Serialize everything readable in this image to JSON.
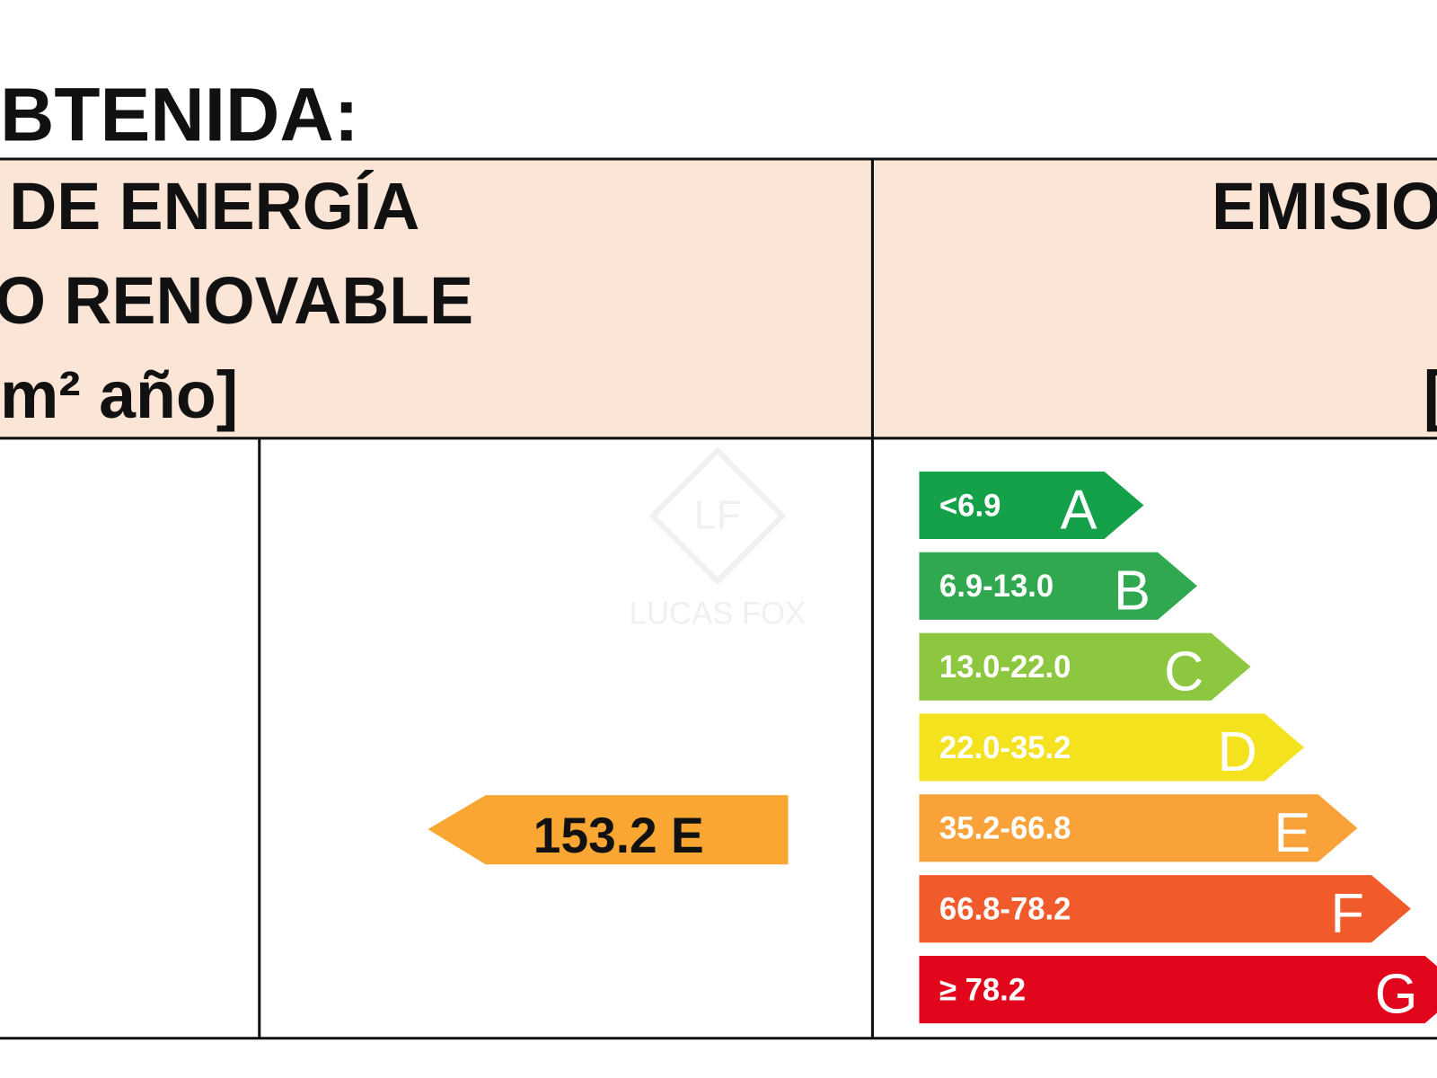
{
  "header": {
    "title": "BTENIDA:",
    "left_heading": [
      "DE ENERGÍA",
      "O RENOVABLE",
      "m² año]"
    ],
    "right_heading": [
      "EMISIO",
      "["
    ]
  },
  "indicator": {
    "label": "153.2 E",
    "color": "#f9a632"
  },
  "watermark": {
    "logo": "LF",
    "brand": "LUCAS FOX"
  },
  "scale": [
    {
      "range": "<6.9",
      "letter": "A",
      "color": "#15a04a"
    },
    {
      "range": "6.9-13.0",
      "letter": "B",
      "color": "#2fa84f"
    },
    {
      "range": "13.0-22.0",
      "letter": "C",
      "color": "#8dc63f"
    },
    {
      "range": "22.0-35.2",
      "letter": "D",
      "color": "#f4e21f"
    },
    {
      "range": "35.2-66.8",
      "letter": "E",
      "color": "#f9a23a"
    },
    {
      "range": "66.8-78.2",
      "letter": "F",
      "color": "#f15a2b"
    },
    {
      "range": "≥ 78.2",
      "letter": "G",
      "color": "#e2061c"
    }
  ]
}
